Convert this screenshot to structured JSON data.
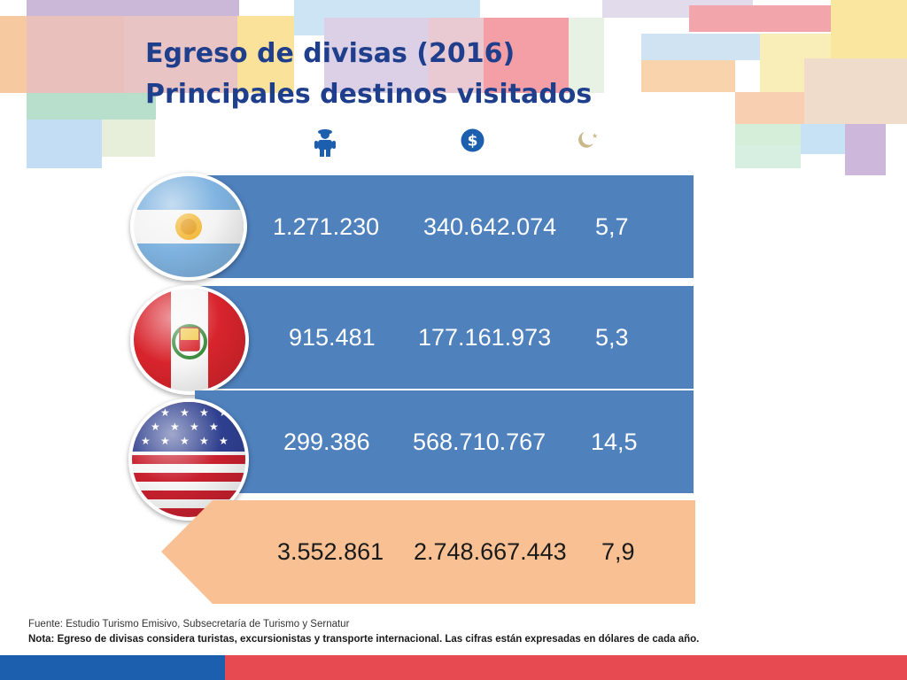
{
  "title": {
    "line1": "Egreso de divisas (2016)",
    "line2": "Principales destinos visitados"
  },
  "header_icons": [
    "tourist-icon",
    "dollar-icon",
    "night-icon"
  ],
  "rows": [
    {
      "flag": "argentina-flag",
      "tourists": "1.271.230",
      "dollars": "340.642.074",
      "nights": "5,7"
    },
    {
      "flag": "peru-flag",
      "tourists": "915.481",
      "dollars": "177.161.973",
      "nights": "5,3"
    },
    {
      "flag": "usa-flag",
      "tourists": "299.386",
      "dollars": "568.710.767",
      "nights": "14,5"
    }
  ],
  "total": {
    "tourists": "3.552.861",
    "dollars": "2.748.667.443",
    "nights": "7,9"
  },
  "footer": {
    "source": "Fuente: Estudio Turismo Emisivo, Subsecretaría de Turismo y Sernatur",
    "note": "Nota: Egreso de divisas considera turistas, excursionistas y transporte internacional. Las cifras están expresadas en dólares de cada año."
  },
  "colors": {
    "row_blue": "#4f81bd",
    "total_orange": "#f9c193",
    "title_blue": "#1f3e8c",
    "bar_blue": "#1b5fae",
    "bar_red": "#e84a52"
  }
}
